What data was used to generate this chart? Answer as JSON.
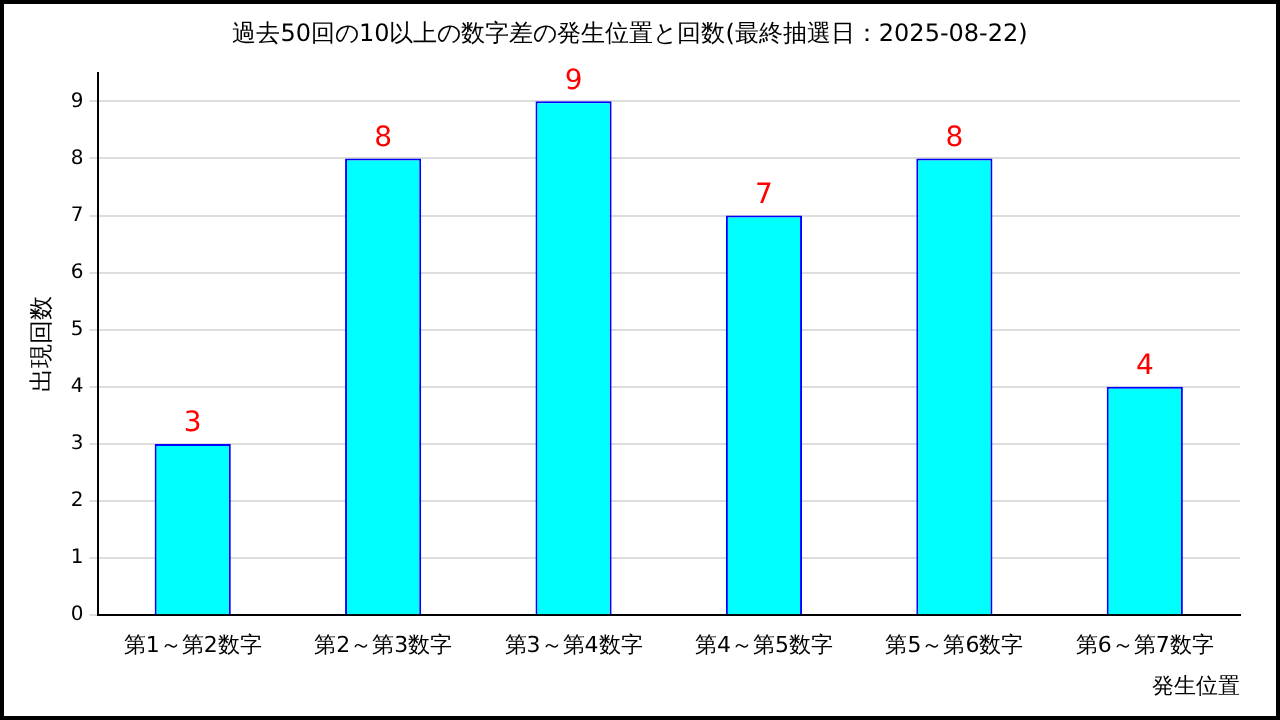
{
  "chart_data": {
    "type": "bar",
    "title": "過去50回の10以上の数字差の発生位置と回数(最終抽選日：2025-08-22)",
    "xlabel": "発生位置",
    "ylabel": "出現回数",
    "categories": [
      "第1～第2数字",
      "第2～第3数字",
      "第3～第4数字",
      "第4～第5数字",
      "第5～第6数字",
      "第6～第7数字"
    ],
    "values": [
      3,
      8,
      9,
      7,
      8,
      4
    ],
    "color": "#00ffff",
    "ylim": [
      0,
      9.5
    ],
    "yticks": [
      0,
      1,
      2,
      3,
      4,
      5,
      6,
      7,
      8,
      9
    ],
    "grid": "y",
    "data_labels": true,
    "legend": false
  }
}
